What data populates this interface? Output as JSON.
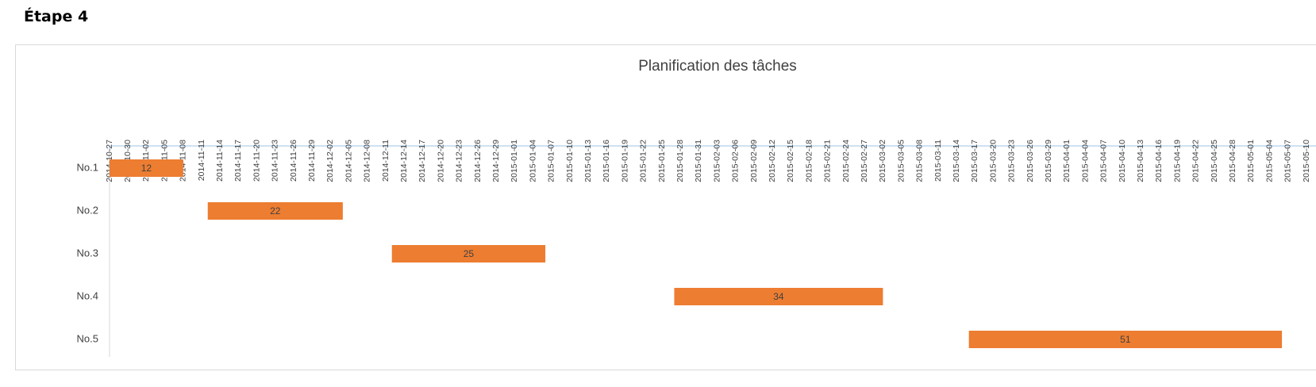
{
  "header": {
    "title": "Étape 4"
  },
  "chart_data": {
    "type": "gantt",
    "title": "Planification des tâches",
    "categories": [
      "No.1",
      "No.2",
      "No.3",
      "No.4",
      "No.5"
    ],
    "start": [
      "2014-10-27",
      "2014-11-12",
      "2014-12-12",
      "2015-01-27",
      "2015-03-16"
    ],
    "values": [
      12,
      22,
      25,
      34,
      51
    ],
    "color": "#ed7d31",
    "xlim": [
      "2014-10-27",
      "2015-05-10"
    ],
    "xticks": [
      "2014-10-27",
      "2014-10-30",
      "2014-11-02",
      "2014-11-05",
      "2014-11-08",
      "2014-11-11",
      "2014-11-14",
      "2014-11-17",
      "2014-11-20",
      "2014-11-23",
      "2014-11-26",
      "2014-11-29",
      "2014-12-02",
      "2014-12-05",
      "2014-12-08",
      "2014-12-11",
      "2014-12-14",
      "2014-12-17",
      "2014-12-20",
      "2014-12-23",
      "2014-12-26",
      "2014-12-29",
      "2015-01-01",
      "2015-01-04",
      "2015-01-07",
      "2015-01-10",
      "2015-01-13",
      "2015-01-16",
      "2015-01-19",
      "2015-01-22",
      "2015-01-25",
      "2015-01-28",
      "2015-01-31",
      "2015-02-03",
      "2015-02-06",
      "2015-02-09",
      "2015-02-12",
      "2015-02-15",
      "2015-02-18",
      "2015-02-21",
      "2015-02-24",
      "2015-02-27",
      "2015-03-02",
      "2015-03-05",
      "2015-03-08",
      "2015-03-11",
      "2015-03-14",
      "2015-03-17",
      "2015-03-20",
      "2015-03-23",
      "2015-03-26",
      "2015-03-29",
      "2015-04-01",
      "2015-04-04",
      "2015-04-07",
      "2015-04-10",
      "2015-04-13",
      "2015-04-16",
      "2015-04-19",
      "2015-04-22",
      "2015-04-25",
      "2015-04-28",
      "2015-05-01",
      "2015-05-04",
      "2015-05-07",
      "2015-05-10"
    ],
    "grid": false
  }
}
